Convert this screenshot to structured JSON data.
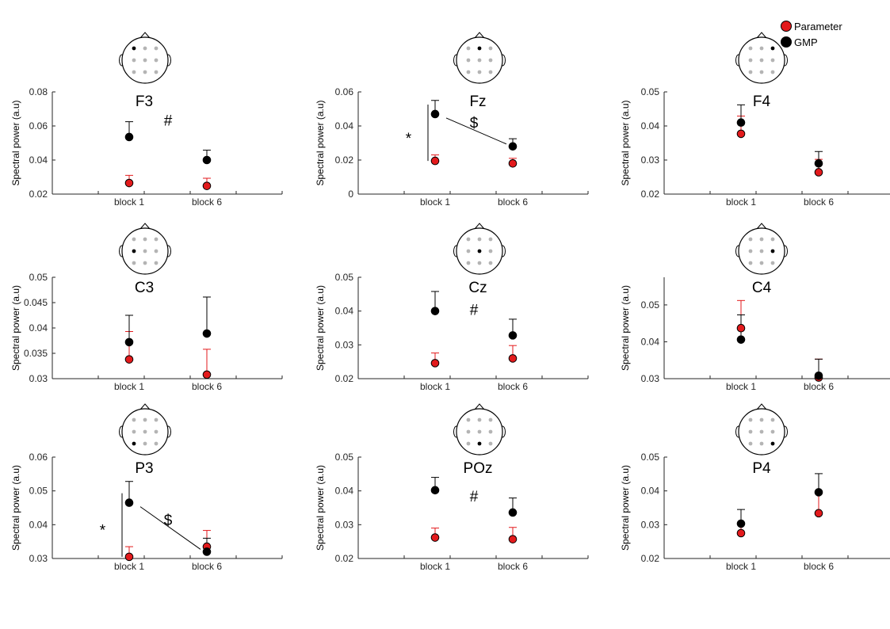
{
  "colors": {
    "parameter": "#e31a1c",
    "gmp": "#000000",
    "axis": "#262626",
    "electrode_off": "#b4b4b4",
    "electrode_on": "#000000"
  },
  "legend": [
    {
      "label": "Parameter",
      "color": "#e31a1c"
    },
    {
      "label": "GMP",
      "color": "#000000"
    }
  ],
  "chart_data": [
    {
      "type": "scatter",
      "title": "F3",
      "electrode": "top-left",
      "ylabel": "Spectral power (a.u)",
      "categories": [
        "block 1",
        "block 6"
      ],
      "ylim": [
        0.02,
        0.08
      ],
      "yticks": [
        "0.02",
        "0.04",
        "0.06",
        "0.08"
      ],
      "series": [
        {
          "name": "Parameter",
          "values": [
            0.0265,
            0.0248
          ],
          "errors": [
            0.0045,
            0.0045
          ]
        },
        {
          "name": "GMP",
          "values": [
            0.0535,
            0.04
          ],
          "errors": [
            0.009,
            0.0058
          ]
        }
      ],
      "annotations": [
        {
          "text": "#",
          "x": 1.5,
          "y": 0.0635
        }
      ]
    },
    {
      "type": "scatter",
      "title": "Fz",
      "electrode": "top-center",
      "ylabel": "Spectral power (a.u)",
      "categories": [
        "block 1",
        "block 6"
      ],
      "ylim": [
        0,
        0.06
      ],
      "yticks": [
        "0",
        "0.02",
        "0.04",
        "0.06"
      ],
      "series": [
        {
          "name": "Parameter",
          "values": [
            0.0195,
            0.018
          ],
          "errors": [
            0.0035,
            0.003
          ]
        },
        {
          "name": "GMP",
          "values": [
            0.047,
            0.028
          ],
          "errors": [
            0.008,
            0.0045
          ]
        }
      ],
      "annotations": [
        {
          "text": "*",
          "x": 0.78,
          "y": 0.033
        },
        {
          "text": "$",
          "x": 1.5,
          "y": 0.042
        }
      ]
    },
    {
      "type": "scatter",
      "title": "F4",
      "electrode": "top-right",
      "ylabel": "Spectral power (a.u)",
      "categories": [
        "block 1",
        "block 6"
      ],
      "ylim": [
        0.02,
        0.05
      ],
      "yticks": [
        "0.02",
        "0.03",
        "0.04",
        "0.05"
      ],
      "series": [
        {
          "name": "Parameter",
          "values": [
            0.0377,
            0.0264
          ],
          "errors": [
            0.0052,
            0.0038
          ]
        },
        {
          "name": "GMP",
          "values": [
            0.041,
            0.029
          ],
          "errors": [
            0.0052,
            0.0035
          ]
        }
      ],
      "annotations": []
    },
    {
      "type": "scatter",
      "title": "C3",
      "electrode": "middle-left",
      "ylabel": "Spectral power (a.u)",
      "categories": [
        "block 1",
        "block 6"
      ],
      "ylim": [
        0.03,
        0.05
      ],
      "yticks": [
        "0.03",
        "0.035",
        "0.04",
        "0.045",
        "0.05"
      ],
      "series": [
        {
          "name": "Parameter",
          "values": [
            0.0338,
            0.0308
          ],
          "errors": [
            0.0055,
            0.005
          ]
        },
        {
          "name": "GMP",
          "values": [
            0.0372,
            0.0389
          ],
          "errors": [
            0.0053,
            0.0072
          ]
        }
      ],
      "annotations": []
    },
    {
      "type": "scatter",
      "title": "Cz",
      "electrode": "middle-center",
      "ylabel": "Spectral power (a.u)",
      "categories": [
        "block 1",
        "block 6"
      ],
      "ylim": [
        0.02,
        0.05
      ],
      "yticks": [
        "0.02",
        "0.03",
        "0.04",
        "0.05"
      ],
      "series": [
        {
          "name": "Parameter",
          "values": [
            0.0246,
            0.026
          ],
          "errors": [
            0.003,
            0.0038
          ]
        },
        {
          "name": "GMP",
          "values": [
            0.04,
            0.0328
          ],
          "errors": [
            0.0058,
            0.0048
          ]
        }
      ],
      "annotations": [
        {
          "text": "#",
          "x": 1.5,
          "y": 0.0405
        }
      ]
    },
    {
      "type": "scatter",
      "title": "C4",
      "electrode": "middle-right",
      "ylabel": "Spectral power (a.u)",
      "categories": [
        "block 1",
        "block 6"
      ],
      "ylim": [
        0.03,
        0.0575
      ],
      "yticks": [
        "0.03",
        "0.04",
        "0.05"
      ],
      "series": [
        {
          "name": "Parameter",
          "values": [
            0.0437,
            0.0303
          ],
          "errors": [
            0.0075,
            0.005
          ]
        },
        {
          "name": "GMP",
          "values": [
            0.0406,
            0.0308
          ],
          "errors": [
            0.0067,
            0.0045
          ]
        }
      ],
      "annotations": []
    },
    {
      "type": "scatter",
      "title": "P3",
      "electrode": "bottom-left",
      "ylabel": "Spectral power (a.u)",
      "categories": [
        "block 1",
        "block 6"
      ],
      "ylim": [
        0.03,
        0.06
      ],
      "yticks": [
        "0.03",
        "0.04",
        "0.05",
        "0.06"
      ],
      "series": [
        {
          "name": "Parameter",
          "values": [
            0.0305,
            0.0335
          ],
          "errors": [
            0.003,
            0.0048
          ]
        },
        {
          "name": "GMP",
          "values": [
            0.0465,
            0.032
          ],
          "errors": [
            0.0063,
            0.004
          ]
        }
      ],
      "annotations": [
        {
          "text": "*",
          "x": 0.78,
          "y": 0.0385
        },
        {
          "text": "$",
          "x": 1.5,
          "y": 0.0415
        }
      ]
    },
    {
      "type": "scatter",
      "title": "POz",
      "electrode": "bottom-center",
      "ylabel": "Spectral power (a.u)",
      "categories": [
        "block 1",
        "block 6"
      ],
      "ylim": [
        0.02,
        0.05
      ],
      "yticks": [
        "0.02",
        "0.03",
        "0.04",
        "0.05"
      ],
      "series": [
        {
          "name": "Parameter",
          "values": [
            0.0262,
            0.0257
          ],
          "errors": [
            0.0028,
            0.0035
          ]
        },
        {
          "name": "GMP",
          "values": [
            0.0402,
            0.0336
          ],
          "errors": [
            0.0038,
            0.0043
          ]
        }
      ],
      "annotations": [
        {
          "text": "#",
          "x": 1.5,
          "y": 0.0385
        }
      ]
    },
    {
      "type": "scatter",
      "title": "P4",
      "electrode": "bottom-right",
      "ylabel": "Spectral power (a.u)",
      "categories": [
        "block 1",
        "block 6"
      ],
      "ylim": [
        0.02,
        0.05
      ],
      "yticks": [
        "0.02",
        "0.03",
        "0.04",
        "0.05"
      ],
      "series": [
        {
          "name": "Parameter",
          "values": [
            0.0275,
            0.0334
          ],
          "errors": [
            0.0028,
            0.0058
          ]
        },
        {
          "name": "GMP",
          "values": [
            0.0303,
            0.0396
          ],
          "errors": [
            0.0042,
            0.0055
          ]
        }
      ],
      "annotations": []
    }
  ]
}
